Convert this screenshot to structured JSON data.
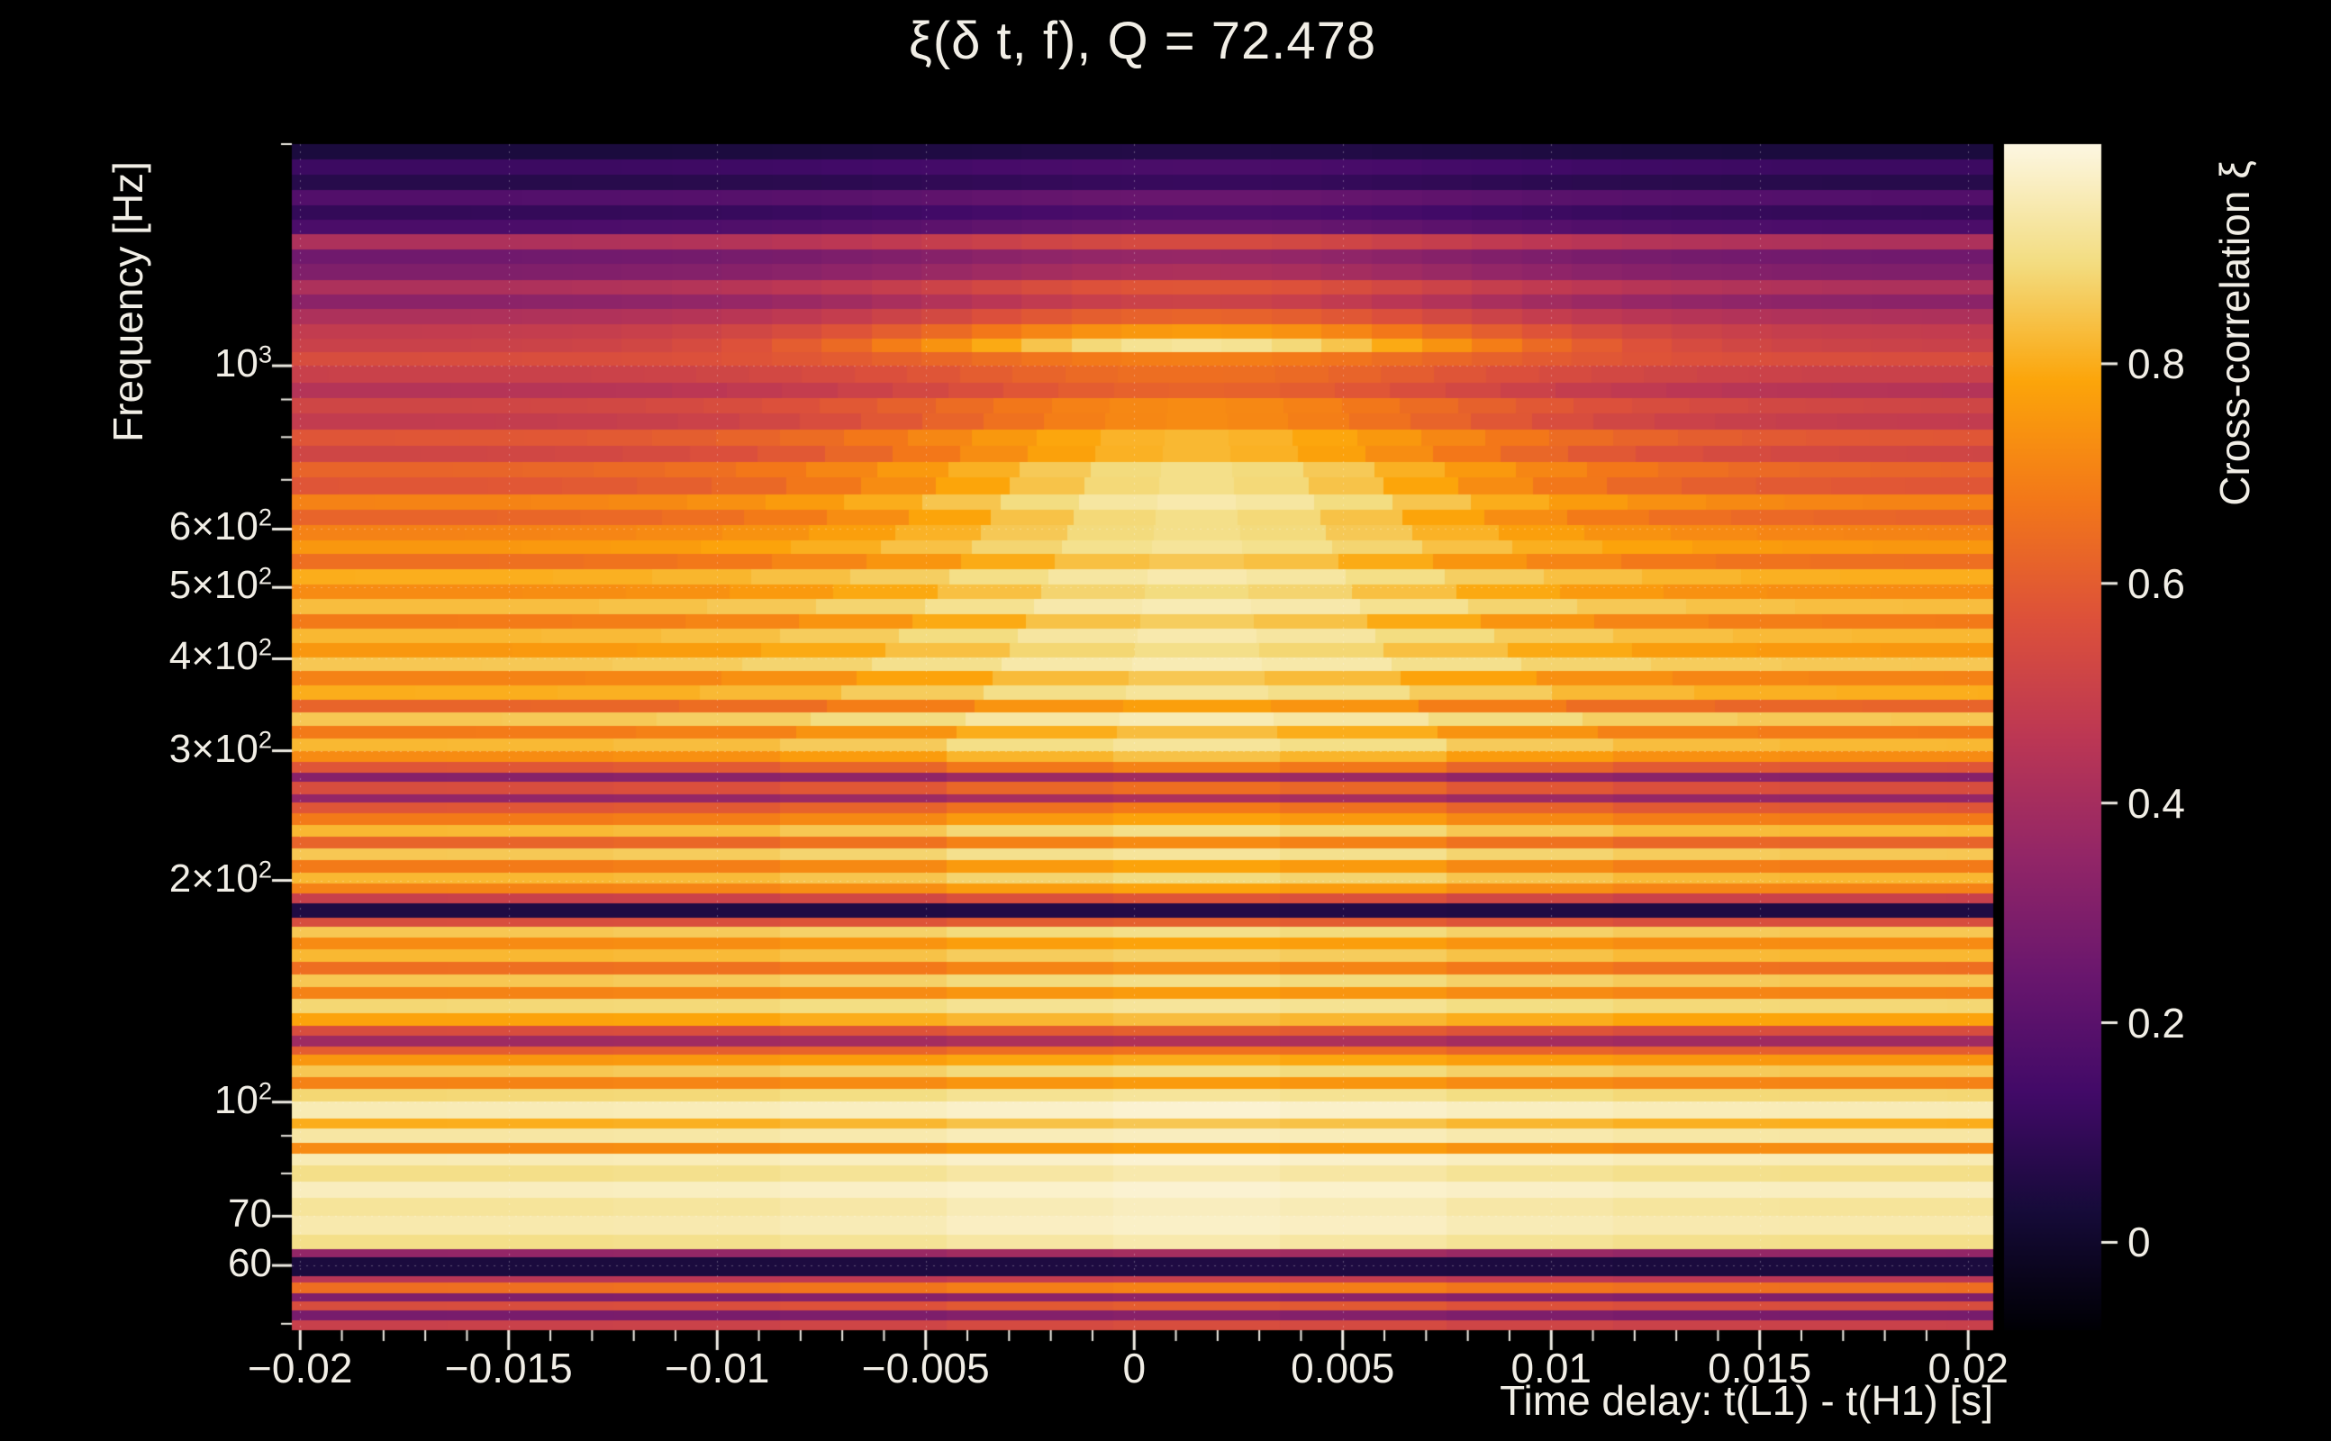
{
  "chart_data": {
    "type": "heatmap",
    "title": "ξ(δ t, f), Q = 72.478",
    "q": 72.478,
    "xlabel": "Time delay: t(L1) - t(H1) [s]",
    "ylabel": "Frequency [Hz]",
    "colorbar_label": "Cross-correlation ξ",
    "x_range": [
      -0.0202,
      0.0206
    ],
    "y_range_hz": [
      49,
      2000
    ],
    "y_scale": "log",
    "value_range": [
      -0.08,
      1.0
    ],
    "grid": "dotted",
    "legend_position": "colorbar-right",
    "colors": {
      "background": "#000000",
      "text": "#f1eee6"
    },
    "x_ticks": [
      {
        "v": -0.02,
        "label": "−0.02"
      },
      {
        "v": -0.015,
        "label": "−0.015"
      },
      {
        "v": -0.01,
        "label": "−0.01"
      },
      {
        "v": -0.005,
        "label": "−0.005"
      },
      {
        "v": 0,
        "label": "0"
      },
      {
        "v": 0.005,
        "label": "0.005"
      },
      {
        "v": 0.01,
        "label": "0.01"
      },
      {
        "v": 0.015,
        "label": "0.015"
      },
      {
        "v": 0.02,
        "label": "0.02"
      }
    ],
    "x_minor_step": 0.001,
    "y_ticks": [
      {
        "v": 1000,
        "m": "10",
        "e": "3"
      },
      {
        "v": 600,
        "m": "6×10",
        "e": "2"
      },
      {
        "v": 500,
        "m": "5×10",
        "e": "2"
      },
      {
        "v": 400,
        "m": "4×10",
        "e": "2"
      },
      {
        "v": 300,
        "m": "3×10",
        "e": "2"
      },
      {
        "v": 200,
        "m": "2×10",
        "e": "2"
      },
      {
        "v": 100,
        "m": "10",
        "e": "2"
      },
      {
        "v": 70,
        "m": "70",
        "e": ""
      },
      {
        "v": 60,
        "m": "60",
        "e": ""
      }
    ],
    "y_minor_ticks": [
      50,
      80,
      90,
      700,
      800,
      900,
      2000
    ],
    "colorbar_ticks": [
      {
        "v": 0,
        "label": "0"
      },
      {
        "v": 0.2,
        "label": "0.2"
      },
      {
        "v": 0.4,
        "label": "0.4"
      },
      {
        "v": 0.6,
        "label": "0.6"
      },
      {
        "v": 0.8,
        "label": "0.8"
      }
    ],
    "colormap": [
      [
        0.0,
        "#000004"
      ],
      [
        0.1,
        "#160b39"
      ],
      [
        0.2,
        "#420a68"
      ],
      [
        0.3,
        "#6a176e"
      ],
      [
        0.4,
        "#932667"
      ],
      [
        0.5,
        "#bc3754"
      ],
      [
        0.6,
        "#dd513a"
      ],
      [
        0.7,
        "#f37819"
      ],
      [
        0.8,
        "#fca50a"
      ],
      [
        0.9,
        "#f3dd81"
      ],
      [
        1.0,
        "#fdf7e2"
      ]
    ],
    "time_center": 0.0015,
    "time_sigma": 0.008,
    "bands_format": [
      "freq_hz",
      "xi_edge",
      "xi_center_boost"
    ],
    "bands": [
      [
        49,
        0.5,
        0.05
      ],
      [
        50.5,
        0.28,
        0.04
      ],
      [
        52,
        0.55,
        0.05
      ],
      [
        53.5,
        0.3,
        0.04
      ],
      [
        55,
        0.65,
        0.05
      ],
      [
        56.8,
        0.45,
        0.04
      ],
      [
        58,
        0.04,
        0.01
      ],
      [
        61.5,
        0.35,
        0.05
      ],
      [
        63,
        0.9,
        0.04
      ],
      [
        66,
        0.94,
        0.03
      ],
      [
        70,
        0.92,
        0.04
      ],
      [
        74,
        0.96,
        0.02
      ],
      [
        78,
        0.9,
        0.04
      ],
      [
        82,
        0.95,
        0.03
      ],
      [
        85,
        0.72,
        0.05
      ],
      [
        88,
        0.93,
        0.03
      ],
      [
        92,
        0.8,
        0.05
      ],
      [
        95,
        0.95,
        0.03
      ],
      [
        100,
        0.88,
        0.04
      ],
      [
        104,
        0.7,
        0.06
      ],
      [
        108,
        0.85,
        0.05
      ],
      [
        112,
        0.75,
        0.05
      ],
      [
        116,
        0.6,
        0.06
      ],
      [
        119,
        0.38,
        0.05
      ],
      [
        123,
        0.55,
        0.06
      ],
      [
        127,
        0.78,
        0.05
      ],
      [
        132,
        0.88,
        0.04
      ],
      [
        138,
        0.7,
        0.06
      ],
      [
        143,
        0.85,
        0.05
      ],
      [
        149,
        0.65,
        0.07
      ],
      [
        155,
        0.82,
        0.05
      ],
      [
        161,
        0.72,
        0.06
      ],
      [
        167,
        0.85,
        0.05
      ],
      [
        173,
        0.55,
        0.06
      ],
      [
        178,
        0.05,
        0.01
      ],
      [
        186,
        0.5,
        0.08
      ],
      [
        192,
        0.7,
        0.08
      ],
      [
        198,
        0.82,
        0.07
      ],
      [
        205,
        0.68,
        0.1
      ],
      [
        213,
        0.85,
        0.07
      ],
      [
        221,
        0.62,
        0.1
      ],
      [
        229,
        0.82,
        0.08
      ],
      [
        238,
        0.68,
        0.1
      ],
      [
        247,
        0.58,
        0.1
      ],
      [
        255,
        0.35,
        0.07
      ],
      [
        262,
        0.55,
        0.1
      ],
      [
        272,
        0.32,
        0.07
      ],
      [
        280,
        0.58,
        0.12
      ],
      [
        290,
        0.72,
        0.12
      ],
      [
        300,
        0.82,
        0.1
      ],
      [
        312,
        0.68,
        0.15
      ],
      [
        324,
        0.85,
        0.1
      ],
      [
        338,
        0.62,
        0.15
      ],
      [
        352,
        0.8,
        0.12
      ],
      [
        368,
        0.7,
        0.15
      ],
      [
        385,
        0.85,
        0.1
      ],
      [
        402,
        0.75,
        0.15
      ],
      [
        420,
        0.82,
        0.12
      ],
      [
        440,
        0.68,
        0.18
      ],
      [
        460,
        0.83,
        0.12
      ],
      [
        482,
        0.72,
        0.17
      ],
      [
        505,
        0.8,
        0.14
      ],
      [
        530,
        0.65,
        0.2
      ],
      [
        555,
        0.75,
        0.17
      ],
      [
        580,
        0.7,
        0.2
      ],
      [
        608,
        0.62,
        0.28
      ],
      [
        638,
        0.7,
        0.24
      ],
      [
        670,
        0.58,
        0.32
      ],
      [
        705,
        0.62,
        0.28
      ],
      [
        740,
        0.52,
        0.3
      ],
      [
        780,
        0.58,
        0.24
      ],
      [
        820,
        0.48,
        0.24
      ],
      [
        862,
        0.52,
        0.2
      ],
      [
        905,
        0.44,
        0.18
      ],
      [
        950,
        0.5,
        0.15
      ],
      [
        1000,
        0.55,
        0.14
      ],
      [
        1045,
        0.5,
        0.42
      ],
      [
        1090,
        0.48,
        0.28
      ],
      [
        1140,
        0.42,
        0.2
      ],
      [
        1195,
        0.33,
        0.18
      ],
      [
        1250,
        0.42,
        0.16
      ],
      [
        1310,
        0.3,
        0.12
      ],
      [
        1375,
        0.26,
        0.1
      ],
      [
        1440,
        0.42,
        0.12
      ],
      [
        1510,
        0.16,
        0.08
      ],
      [
        1580,
        0.1,
        0.06
      ],
      [
        1655,
        0.18,
        0.06
      ],
      [
        1735,
        0.07,
        0.04
      ],
      [
        1820,
        0.12,
        0.04
      ],
      [
        1910,
        0.04,
        0.02
      ]
    ]
  }
}
